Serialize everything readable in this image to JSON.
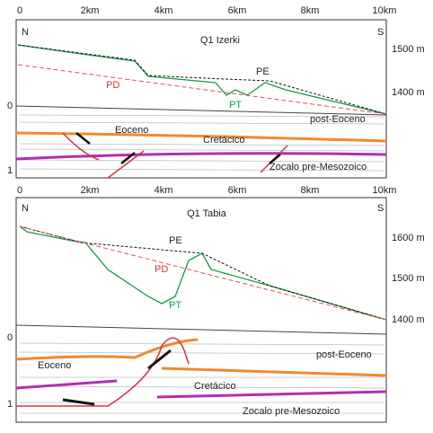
{
  "panels": [
    {
      "title": "Q1 Izerki",
      "north": "N",
      "south": "S",
      "distance_ticks": [
        "0",
        "2km",
        "4km",
        "6km",
        "8km",
        "10km"
      ],
      "elevation_ticks": [
        "1500 m",
        "1400 m"
      ],
      "depth_ticks": [
        "0",
        "1"
      ],
      "surface_labels": [
        "PE",
        "PD",
        "PT"
      ],
      "unit_labels": [
        "post-Eoceno",
        "Eoceno",
        "Cretácico",
        "Zocalo pre-Mesozoico"
      ]
    },
    {
      "title": "Q1 Tabia",
      "north": "N",
      "south": "S",
      "distance_ticks": [
        "0",
        "2km",
        "4km",
        "6km",
        "8km",
        "10km"
      ],
      "elevation_ticks": [
        "1600 m",
        "1500 m",
        "1400 m"
      ],
      "depth_ticks": [
        "0",
        "1"
      ],
      "surface_labels": [
        "PE",
        "PD",
        "PT"
      ],
      "unit_labels": [
        "post-Eoceno",
        "Eoceno",
        "Cretácico",
        "Zocalo pre-Mesozoico"
      ]
    }
  ]
}
